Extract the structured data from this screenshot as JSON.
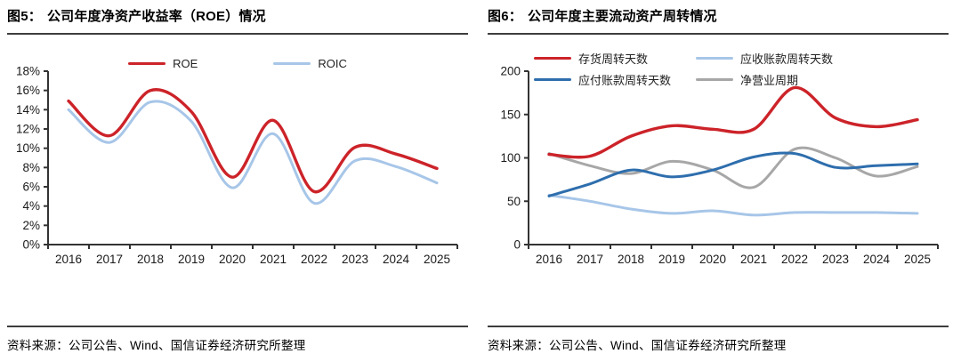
{
  "panels": [
    {
      "figure_label": "图5：",
      "title": "公司年度净资产收益率（ROE）情况",
      "source": "资料来源：公司公告、Wind、国信证券经济研究所整理"
    },
    {
      "figure_label": "图6：",
      "title": "公司年度主要流动资产周转情况",
      "source": "资料来源：公司公告、Wind、国信证券经济研究所整理"
    }
  ],
  "colors": {
    "red": "#CC2329",
    "light_blue": "#A7C6E8",
    "dark_blue": "#2E6EAD",
    "gray": "#A7A7A7",
    "axis": "#333333",
    "text": "#1a1a1a"
  },
  "chart_data": [
    {
      "type": "line",
      "title": "公司年度净资产收益率（ROE）情况",
      "categories": [
        "2016",
        "2017",
        "2018",
        "2019",
        "2020",
        "2021",
        "2022",
        "2023",
        "2024",
        "2025"
      ],
      "series": [
        {
          "name": "ROE",
          "color": "#CC2329",
          "width": 3.4,
          "values": [
            14.9,
            11.3,
            16.0,
            13.8,
            7.0,
            12.9,
            5.5,
            10.1,
            9.4,
            7.9
          ]
        },
        {
          "name": "ROIC",
          "color": "#A7C6E8",
          "width": 3.0,
          "values": [
            14.0,
            10.6,
            14.8,
            12.8,
            5.9,
            11.5,
            4.3,
            8.7,
            8.1,
            6.4
          ]
        }
      ],
      "ylim": [
        0,
        18
      ],
      "ytick_step": 2,
      "ytick_format": "percent",
      "grid": false,
      "legend_position": "top-center",
      "legend_order": [
        "ROE",
        "ROIC"
      ]
    },
    {
      "type": "line",
      "title": "公司年度主要流动资产周转情况",
      "categories": [
        "2016",
        "2017",
        "2018",
        "2019",
        "2020",
        "2021",
        "2022",
        "2023",
        "2024",
        "2025"
      ],
      "series": [
        {
          "name": "应收账款周转天数",
          "color": "#A7C6E8",
          "width": 3.0,
          "values": [
            57,
            50,
            41,
            36,
            39,
            34,
            37,
            37,
            37,
            36
          ]
        },
        {
          "name": "净营业周期",
          "color": "#A7A7A7",
          "width": 3.0,
          "values": [
            105,
            91,
            82,
            96,
            86,
            66,
            110,
            100,
            79,
            90
          ]
        },
        {
          "name": "应付账款周转天数",
          "color": "#2E6EAD",
          "width": 3.0,
          "values": [
            56,
            70,
            86,
            78,
            86,
            101,
            105,
            89,
            91,
            93
          ]
        },
        {
          "name": "存货周转天数",
          "color": "#CC2329",
          "width": 3.4,
          "values": [
            104,
            102,
            125,
            137,
            133,
            133,
            181,
            146,
            136,
            144
          ]
        }
      ],
      "ylim": [
        0,
        200
      ],
      "ytick_step": 50,
      "ytick_format": "number",
      "grid": false,
      "legend_position": "top-two-column",
      "legend_order": [
        "存货周转天数",
        "应收账款周转天数",
        "应付账款周转天数",
        "净营业周期"
      ]
    }
  ]
}
